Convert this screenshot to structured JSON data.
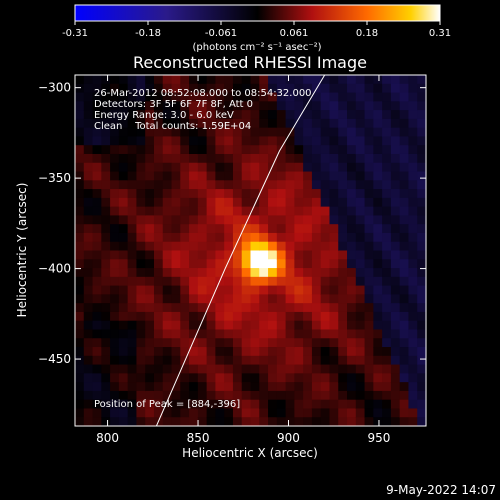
{
  "chart_data": {
    "type": "heatmap",
    "title": "Reconstructed RHESSI Image",
    "xlabel": "Heliocentric X (arcsec)",
    "ylabel": "Heliocentric Y (arcsec)",
    "xlim": [
      782,
      976
    ],
    "ylim": [
      -487,
      -293
    ],
    "xticks": [
      800,
      850,
      900,
      950
    ],
    "yticks": [
      -300,
      -350,
      -400,
      -450
    ],
    "colorbar": {
      "min": -0.31,
      "max": 0.31,
      "ticks": [
        "-0.31",
        "-0.18",
        "-0.061",
        "0.061",
        "0.18",
        "0.31"
      ],
      "units": "(photons cm⁻² s⁻¹ asec⁻²)"
    },
    "peak": [
      884,
      -396
    ],
    "limb_curve": [
      [
        827,
        -487
      ],
      [
        865,
        -400
      ],
      [
        895,
        -335
      ],
      [
        920,
        -293
      ]
    ],
    "annotations": [
      "26-Mar-2012 08:52:08.000 to 08:54:32.000",
      "Detectors: 3F 5F 6F 7F 8F, Att 0",
      "Energy Range: 3.0 - 6.0 keV",
      "Clean    Total counts: 1.59E+04"
    ],
    "peak_label": "Position of Peak = [884,-396]"
  },
  "footer": {
    "timestamp": "9-May-2022 14:07"
  }
}
